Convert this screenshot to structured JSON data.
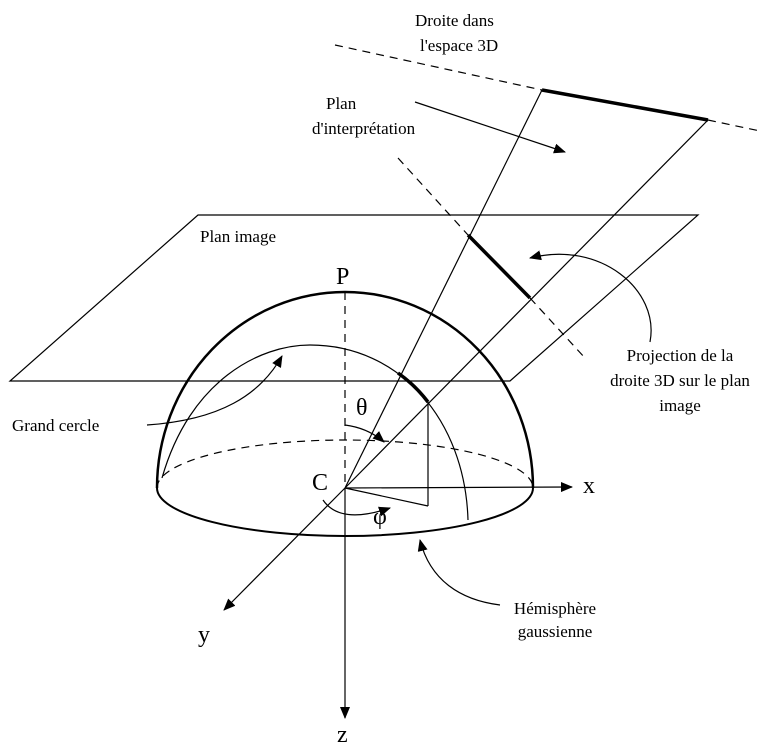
{
  "labels": {
    "line_3d": [
      "Droite dans",
      "l'espace 3D"
    ],
    "interpretation_plane": [
      "Plan",
      "d'interprétation"
    ],
    "image_plane": "Plan image",
    "great_circle": "Grand cercle",
    "projection": [
      "Projection de la",
      "droite 3D sur le plan",
      "image"
    ],
    "hemisphere": [
      "Hémisphère",
      "gaussienne"
    ]
  },
  "points": {
    "P": "P",
    "C": "C"
  },
  "angles": {
    "theta": "θ",
    "phi": "φ"
  },
  "axes": {
    "x": "x",
    "y": "y",
    "z": "z"
  }
}
